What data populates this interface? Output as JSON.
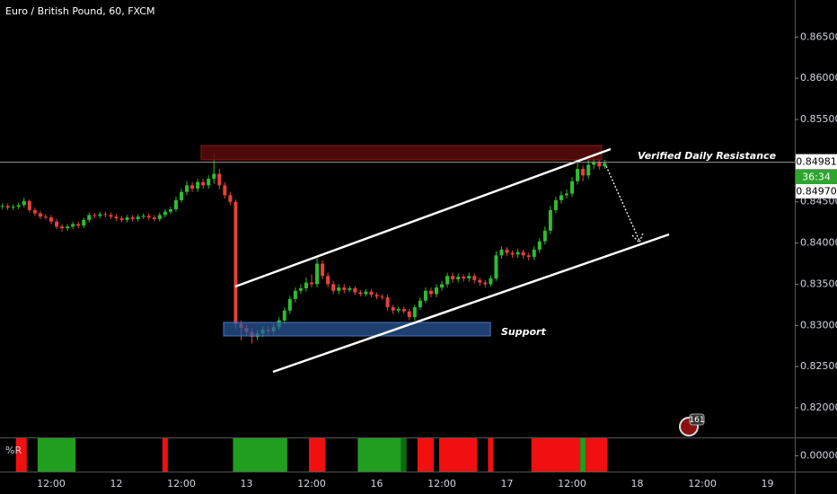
{
  "title": "Euro / British Pound, 60, FXCM",
  "chart_data": {
    "type": "candlestick",
    "open": [
      0.8444,
      0.8445,
      0.8443,
      0.8444,
      0.8446,
      0.8451,
      0.844,
      0.8436,
      0.8432,
      0.8431,
      0.8426,
      0.842,
      0.8418,
      0.842,
      0.8423,
      0.8421,
      0.8428,
      0.8434,
      0.8433,
      0.8435,
      0.8434,
      0.8432,
      0.843,
      0.8428,
      0.8431,
      0.8429,
      0.8432,
      0.8433,
      0.8431,
      0.8429,
      0.8434,
      0.8438,
      0.8441,
      0.8452,
      0.8462,
      0.847,
      0.8466,
      0.8474,
      0.847,
      0.8478,
      0.8484,
      0.847,
      0.8458,
      0.845,
      0.8302,
      0.8297,
      0.8292,
      0.8286,
      0.829,
      0.8295,
      0.8293,
      0.8298,
      0.8306,
      0.8318,
      0.8332,
      0.8342,
      0.8345,
      0.8352,
      0.835,
      0.8375,
      0.836,
      0.835,
      0.8342,
      0.8346,
      0.8343,
      0.8345,
      0.834,
      0.8338,
      0.8341,
      0.8337,
      0.8335,
      0.8334,
      0.8322,
      0.8318,
      0.832,
      0.8317,
      0.831,
      0.8322,
      0.833,
      0.8342,
      0.8338,
      0.8346,
      0.835,
      0.836,
      0.8356,
      0.8359,
      0.8357,
      0.836,
      0.8355,
      0.8352,
      0.835,
      0.8357,
      0.8385,
      0.8392,
      0.8388,
      0.8386,
      0.8389,
      0.8385,
      0.8383,
      0.8392,
      0.8402,
      0.8415,
      0.844,
      0.8452,
      0.8458,
      0.846,
      0.8475,
      0.849,
      0.8482,
      0.8495,
      0.8498,
      0.8493
    ],
    "high": [
      0.8448,
      0.8448,
      0.8447,
      0.8449,
      0.8455,
      0.8453,
      0.8443,
      0.8439,
      0.8435,
      0.8434,
      0.8429,
      0.8423,
      0.8423,
      0.8426,
      0.8426,
      0.8431,
      0.8437,
      0.8437,
      0.8438,
      0.8438,
      0.8437,
      0.8435,
      0.8433,
      0.8434,
      0.8434,
      0.8435,
      0.8436,
      0.8436,
      0.8434,
      0.8437,
      0.8441,
      0.8444,
      0.8456,
      0.8466,
      0.8475,
      0.8474,
      0.8478,
      0.8478,
      0.8482,
      0.851,
      0.849,
      0.8474,
      0.8462,
      0.8453,
      0.8306,
      0.8301,
      0.8296,
      0.8294,
      0.8299,
      0.8299,
      0.8302,
      0.831,
      0.8322,
      0.8336,
      0.8346,
      0.835,
      0.8358,
      0.8362,
      0.8382,
      0.8379,
      0.8364,
      0.8354,
      0.835,
      0.835,
      0.8348,
      0.8348,
      0.8343,
      0.8344,
      0.8344,
      0.834,
      0.8338,
      0.8337,
      0.8325,
      0.8323,
      0.8323,
      0.832,
      0.8325,
      0.8334,
      0.8346,
      0.8346,
      0.835,
      0.8354,
      0.8364,
      0.8364,
      0.8363,
      0.8362,
      0.8364,
      0.8363,
      0.8358,
      0.8355,
      0.8361,
      0.839,
      0.8396,
      0.8395,
      0.8391,
      0.8393,
      0.8392,
      0.8388,
      0.8396,
      0.8406,
      0.842,
      0.8445,
      0.8456,
      0.8463,
      0.8465,
      0.848,
      0.85,
      0.8494,
      0.8508,
      0.851,
      0.8502,
      0.8501
    ],
    "low": [
      0.8441,
      0.844,
      0.844,
      0.8441,
      0.8443,
      0.8437,
      0.8433,
      0.8429,
      0.8428,
      0.8423,
      0.8417,
      0.8414,
      0.8415,
      0.8417,
      0.8418,
      0.8418,
      0.8425,
      0.843,
      0.843,
      0.8431,
      0.8429,
      0.8427,
      0.8425,
      0.8425,
      0.8426,
      0.8426,
      0.8429,
      0.8428,
      0.8426,
      0.8426,
      0.8431,
      0.8435,
      0.8438,
      0.8449,
      0.8458,
      0.8462,
      0.8462,
      0.8466,
      0.8466,
      0.8472,
      0.8465,
      0.8454,
      0.8446,
      0.8296,
      0.8282,
      0.8288,
      0.8278,
      0.8282,
      0.8286,
      0.8289,
      0.8289,
      0.8294,
      0.8302,
      0.8314,
      0.8328,
      0.8338,
      0.8341,
      0.8346,
      0.8346,
      0.8356,
      0.8346,
      0.8338,
      0.8338,
      0.8339,
      0.834,
      0.8337,
      0.8335,
      0.8335,
      0.8334,
      0.8332,
      0.8331,
      0.8318,
      0.8314,
      0.8315,
      0.8314,
      0.8306,
      0.8306,
      0.8319,
      0.8327,
      0.8334,
      0.8334,
      0.8342,
      0.8346,
      0.8352,
      0.8352,
      0.8353,
      0.8353,
      0.8351,
      0.8348,
      0.8346,
      0.8347,
      0.8354,
      0.8381,
      0.8384,
      0.8382,
      0.8382,
      0.8381,
      0.8379,
      0.8379,
      0.8388,
      0.8398,
      0.8411,
      0.8436,
      0.8448,
      0.8454,
      0.8456,
      0.8471,
      0.8475,
      0.8478,
      0.849,
      0.8489,
      0.849
    ],
    "close": [
      0.8445,
      0.8443,
      0.8444,
      0.8446,
      0.8451,
      0.844,
      0.8436,
      0.8432,
      0.8431,
      0.8426,
      0.842,
      0.8418,
      0.842,
      0.8423,
      0.8421,
      0.8428,
      0.8434,
      0.8433,
      0.8435,
      0.8434,
      0.8432,
      0.843,
      0.8428,
      0.8431,
      0.8429,
      0.8432,
      0.8433,
      0.8431,
      0.8429,
      0.8434,
      0.8438,
      0.8441,
      0.8452,
      0.8462,
      0.847,
      0.8466,
      0.8474,
      0.847,
      0.8478,
      0.8484,
      0.847,
      0.8458,
      0.845,
      0.8302,
      0.8297,
      0.8292,
      0.8286,
      0.829,
      0.8295,
      0.8293,
      0.8298,
      0.8306,
      0.8318,
      0.8332,
      0.8342,
      0.8345,
      0.8352,
      0.835,
      0.8375,
      0.836,
      0.835,
      0.8342,
      0.8346,
      0.8343,
      0.8345,
      0.834,
      0.8338,
      0.8341,
      0.8337,
      0.8335,
      0.8334,
      0.8322,
      0.8318,
      0.832,
      0.8317,
      0.831,
      0.8322,
      0.833,
      0.8342,
      0.8338,
      0.8346,
      0.835,
      0.836,
      0.8356,
      0.8359,
      0.8357,
      0.836,
      0.8355,
      0.8352,
      0.835,
      0.8357,
      0.8385,
      0.8392,
      0.8388,
      0.8386,
      0.8389,
      0.8385,
      0.8383,
      0.8392,
      0.8402,
      0.8415,
      0.844,
      0.8452,
      0.8458,
      0.846,
      0.8475,
      0.849,
      0.8482,
      0.8495,
      0.8498,
      0.8493,
      0.8497
    ],
    "colors": {
      "up": "#2ebd2e",
      "down": "#e8413b"
    },
    "xlim": [
      -0.43,
      146.04
    ],
    "xticks": [
      {
        "value": 9,
        "label": "12:00"
      },
      {
        "value": 21,
        "label": "12"
      },
      {
        "value": 33,
        "label": "12:00"
      },
      {
        "value": 45,
        "label": "13"
      },
      {
        "value": 57,
        "label": "12:00"
      },
      {
        "value": 69,
        "label": "16"
      },
      {
        "value": 81,
        "label": "12:00"
      },
      {
        "value": 93,
        "label": "17"
      },
      {
        "value": 105,
        "label": "12:00"
      },
      {
        "value": 117,
        "label": "18"
      },
      {
        "value": 129,
        "label": "12:00"
      },
      {
        "value": 141,
        "label": "19"
      }
    ],
    "ylim": [
      0.8164,
      0.8695
    ],
    "yticks": [
      {
        "value": 0.82,
        "label": "0.82000"
      },
      {
        "value": 0.825,
        "label": "0.82500"
      },
      {
        "value": 0.83,
        "label": "0.83000"
      },
      {
        "value": 0.835,
        "label": "0.83500"
      },
      {
        "value": 0.84,
        "label": "0.84000"
      },
      {
        "value": 0.845,
        "label": "0.84500"
      },
      {
        "value": 0.85,
        "label": "0.85000"
      },
      {
        "value": 0.855,
        "label": "0.85500"
      },
      {
        "value": 0.86,
        "label": "0.86000"
      },
      {
        "value": 0.865,
        "label": "0.86500"
      }
    ],
    "grid": false,
    "last_price": 0.84981,
    "countdown": "36:34",
    "bid_label": "0.84970",
    "annotations": [
      "Verified Daily Resistance",
      "Support"
    ]
  },
  "indicator": {
    "label": "%R",
    "ylim": [
      -1,
      1.1
    ],
    "yticks": [
      {
        "value": 0,
        "label": "0.00000"
      }
    ],
    "segments": [
      {
        "from": 3,
        "to": 4,
        "color": "#f01010"
      },
      {
        "from": 7,
        "to": 13,
        "color": "#1f9e1f"
      },
      {
        "from": 30,
        "to": 30,
        "color": "#f01010"
      },
      {
        "from": 43,
        "to": 52,
        "color": "#1f9e1f"
      },
      {
        "from": 57,
        "to": 59,
        "color": "#f01010"
      },
      {
        "from": 66,
        "to": 73,
        "color": "#1f9e1f"
      },
      {
        "from": 74,
        "to": 74,
        "color": "#0f6a0f"
      },
      {
        "from": 77,
        "to": 79,
        "color": "#f01010"
      },
      {
        "from": 81,
        "to": 87,
        "color": "#f01010"
      },
      {
        "from": 90,
        "to": 90,
        "color": "#f01010"
      },
      {
        "from": 98,
        "to": 106,
        "color": "#f01010"
      },
      {
        "from": 107,
        "to": 107,
        "color": "#1f9e1f"
      },
      {
        "from": 108,
        "to": 111,
        "color": "#f01010"
      }
    ]
  },
  "badge": "161"
}
